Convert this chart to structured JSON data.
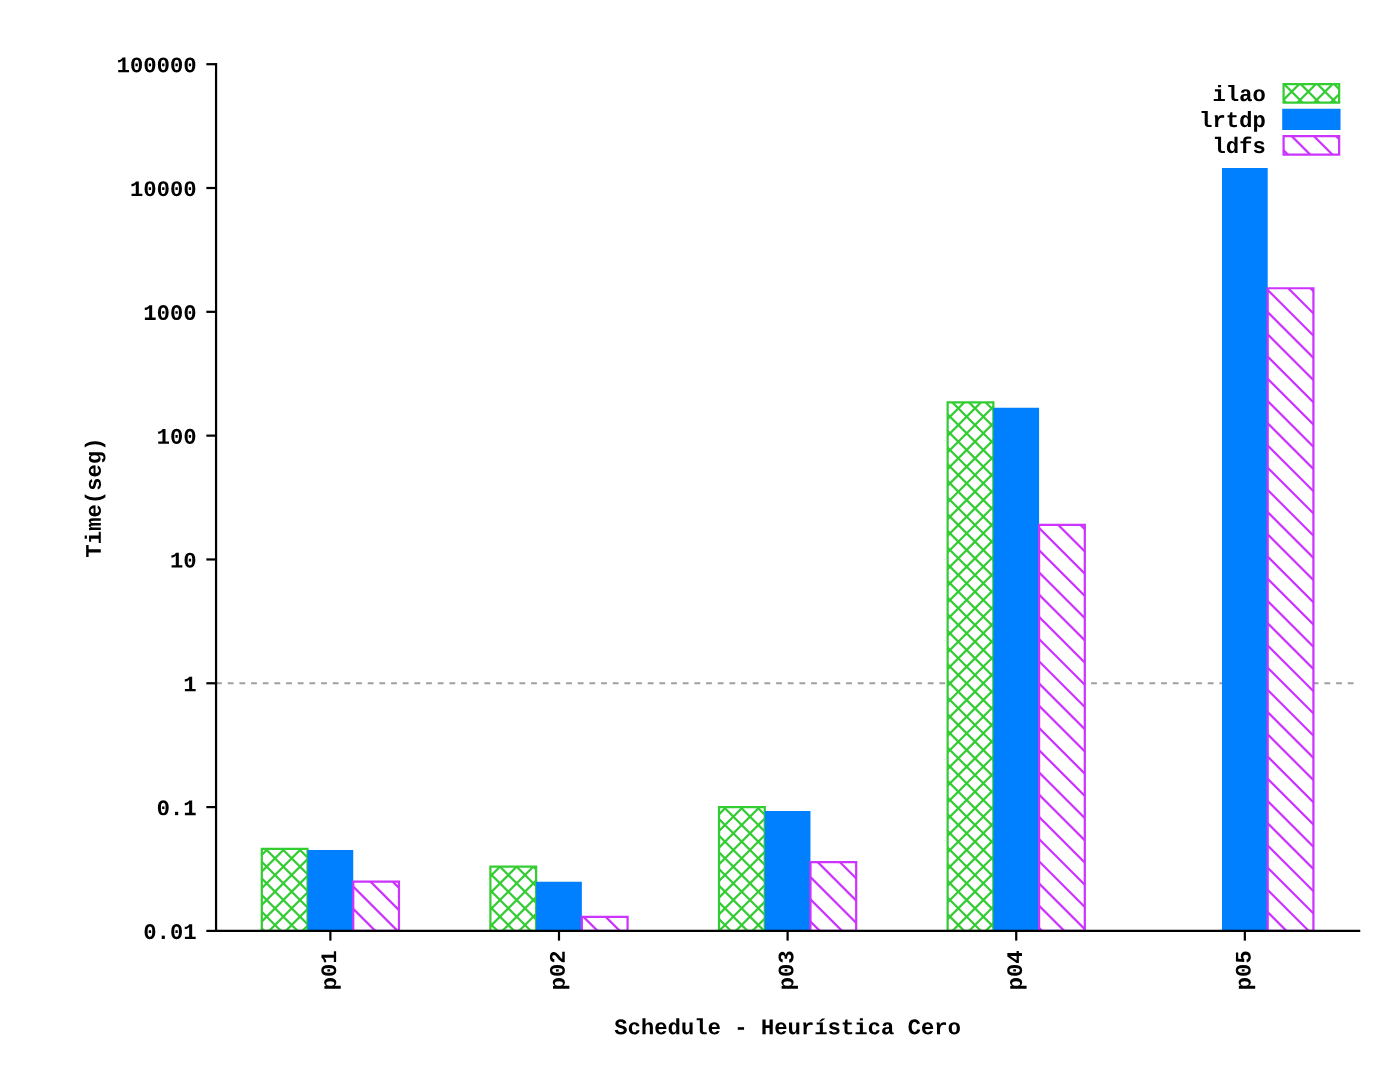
{
  "chart_data": {
    "type": "bar",
    "xlabel": "Schedule - Heurística Cero",
    "ylabel": "Time(seg)",
    "categories": [
      "p01",
      "p02",
      "p03",
      "p04",
      "p05"
    ],
    "series": [
      {
        "name": "ilao",
        "color": "#33cc33",
        "values": [
          0.046,
          0.033,
          0.1,
          186,
          null
        ]
      },
      {
        "name": "lrtdp",
        "color": "#0080ff",
        "values": [
          0.045,
          0.025,
          0.093,
          168,
          14500
        ]
      },
      {
        "name": "ldfs",
        "color": "#cc33ff",
        "values": [
          0.025,
          0.013,
          0.036,
          19,
          1550
        ]
      }
    ],
    "log": "y",
    "ylim": [
      0.01,
      100000
    ],
    "yticks": [
      0.01,
      0.1,
      1,
      10,
      100,
      1000,
      10000,
      100000
    ],
    "ref_lines": [
      {
        "axis": "y",
        "value": 1,
        "color": "#a0a0a0",
        "line_style": "dashed"
      }
    ],
    "legend": "top right",
    "grid": false
  }
}
